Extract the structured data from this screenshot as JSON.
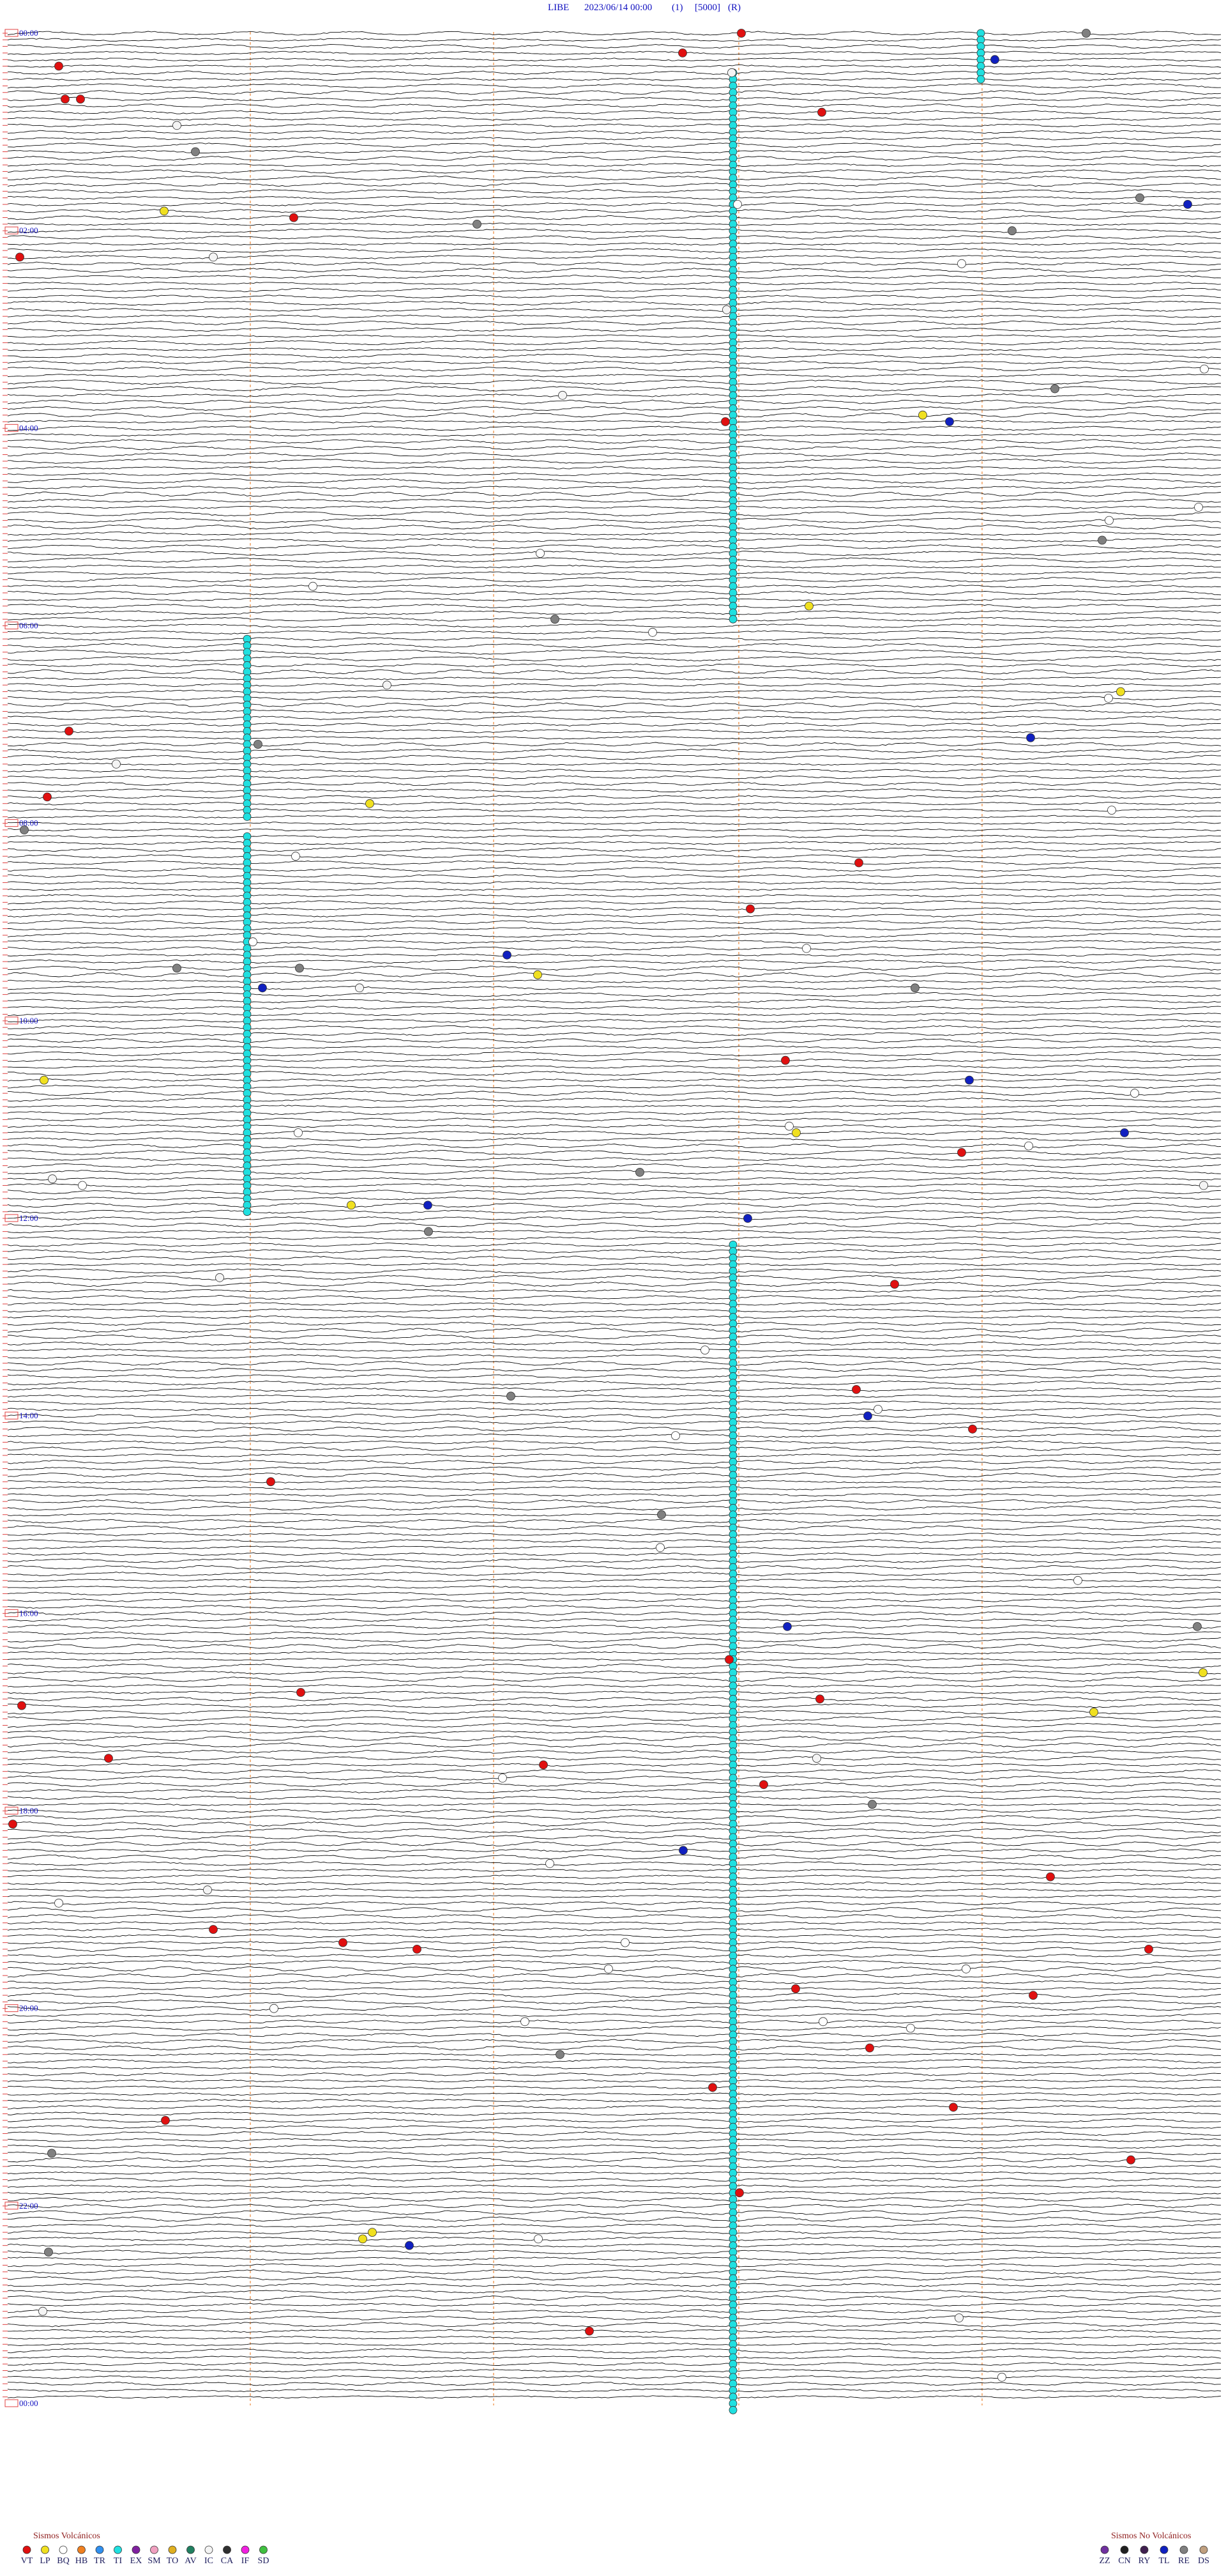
{
  "header": {
    "station": "LIBE",
    "datetime": "2023/06/14 00:00",
    "gain": "(1)",
    "scale": "[5000]",
    "mode": "(R)"
  },
  "hour_labels": [
    "00:00",
    "02:00",
    "04:00",
    "06:00",
    "08:00",
    "10:00",
    "12:00",
    "14:00",
    "16:00",
    "18:00",
    "20:00",
    "22:00",
    "00:00"
  ],
  "legend_volcanic": {
    "title": "Sismos Volcánicos",
    "items": [
      {
        "label": "VT",
        "color": "#e01010"
      },
      {
        "label": "LP",
        "color": "#f0e020"
      },
      {
        "label": "BQ",
        "color": "#ffffff"
      },
      {
        "label": "HB",
        "color": "#f08020"
      },
      {
        "label": "TR",
        "color": "#3090f0"
      },
      {
        "label": "TI",
        "color": "#20e0e0"
      },
      {
        "label": "EX",
        "color": "#8020a0"
      },
      {
        "label": "SM",
        "color": "#f0a0c0"
      },
      {
        "label": "TO",
        "color": "#e0b020"
      },
      {
        "label": "AV",
        "color": "#208060"
      },
      {
        "label": "IC",
        "color": "#f4f4f4"
      },
      {
        "label": "CA",
        "color": "#303030"
      },
      {
        "label": "IF",
        "color": "#f020e0"
      },
      {
        "label": "SD",
        "color": "#40c040"
      }
    ]
  },
  "legend_non_volcanic": {
    "title": "Sismos No Volcánicos",
    "items": [
      {
        "label": "ZZ",
        "color": "#7030a0"
      },
      {
        "label": "CN",
        "color": "#202020"
      },
      {
        "label": "RY",
        "color": "#402050"
      },
      {
        "label": "TL",
        "color": "#1020c0"
      },
      {
        "label": "RE",
        "color": "#808080"
      },
      {
        "label": "DS",
        "color": "#c0a080"
      }
    ]
  }
}
